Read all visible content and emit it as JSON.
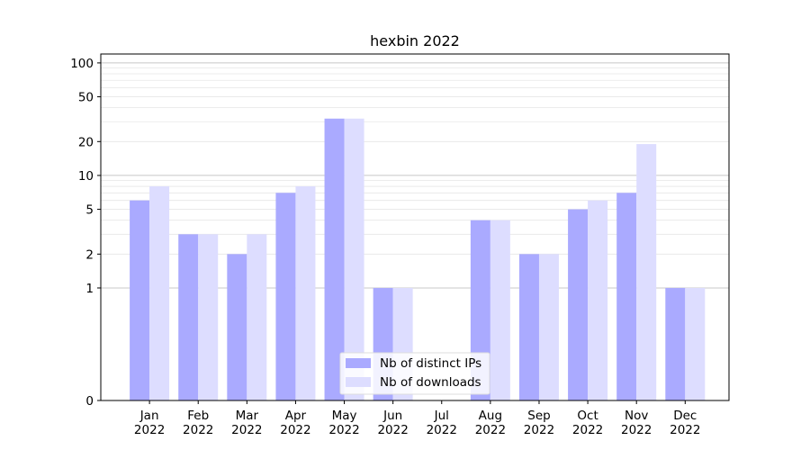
{
  "chart_data": {
    "type": "bar",
    "title": "hexbin 2022",
    "xlabel": "",
    "ylabel": "",
    "y_scale": "symlog",
    "ylim": [
      0,
      120
    ],
    "y_ticks": [
      0,
      1,
      2,
      5,
      10,
      20,
      50,
      100
    ],
    "categories": [
      [
        "Jan",
        "2022"
      ],
      [
        "Feb",
        "2022"
      ],
      [
        "Mar",
        "2022"
      ],
      [
        "Apr",
        "2022"
      ],
      [
        "May",
        "2022"
      ],
      [
        "Jun",
        "2022"
      ],
      [
        "Jul",
        "2022"
      ],
      [
        "Aug",
        "2022"
      ],
      [
        "Sep",
        "2022"
      ],
      [
        "Oct",
        "2022"
      ],
      [
        "Nov",
        "2022"
      ],
      [
        "Dec",
        "2022"
      ]
    ],
    "series": [
      {
        "name": "Nb of distinct IPs",
        "color": "#aaaaff",
        "values": [
          6,
          3,
          2,
          7,
          32,
          1,
          0,
          4,
          2,
          5,
          7,
          1
        ]
      },
      {
        "name": "Nb of downloads",
        "color": "#ddddff",
        "values": [
          8,
          3,
          3,
          8,
          32,
          1,
          0,
          4,
          2,
          6,
          19,
          1
        ]
      }
    ],
    "grid": true,
    "legend_position": "bottom-center"
  }
}
